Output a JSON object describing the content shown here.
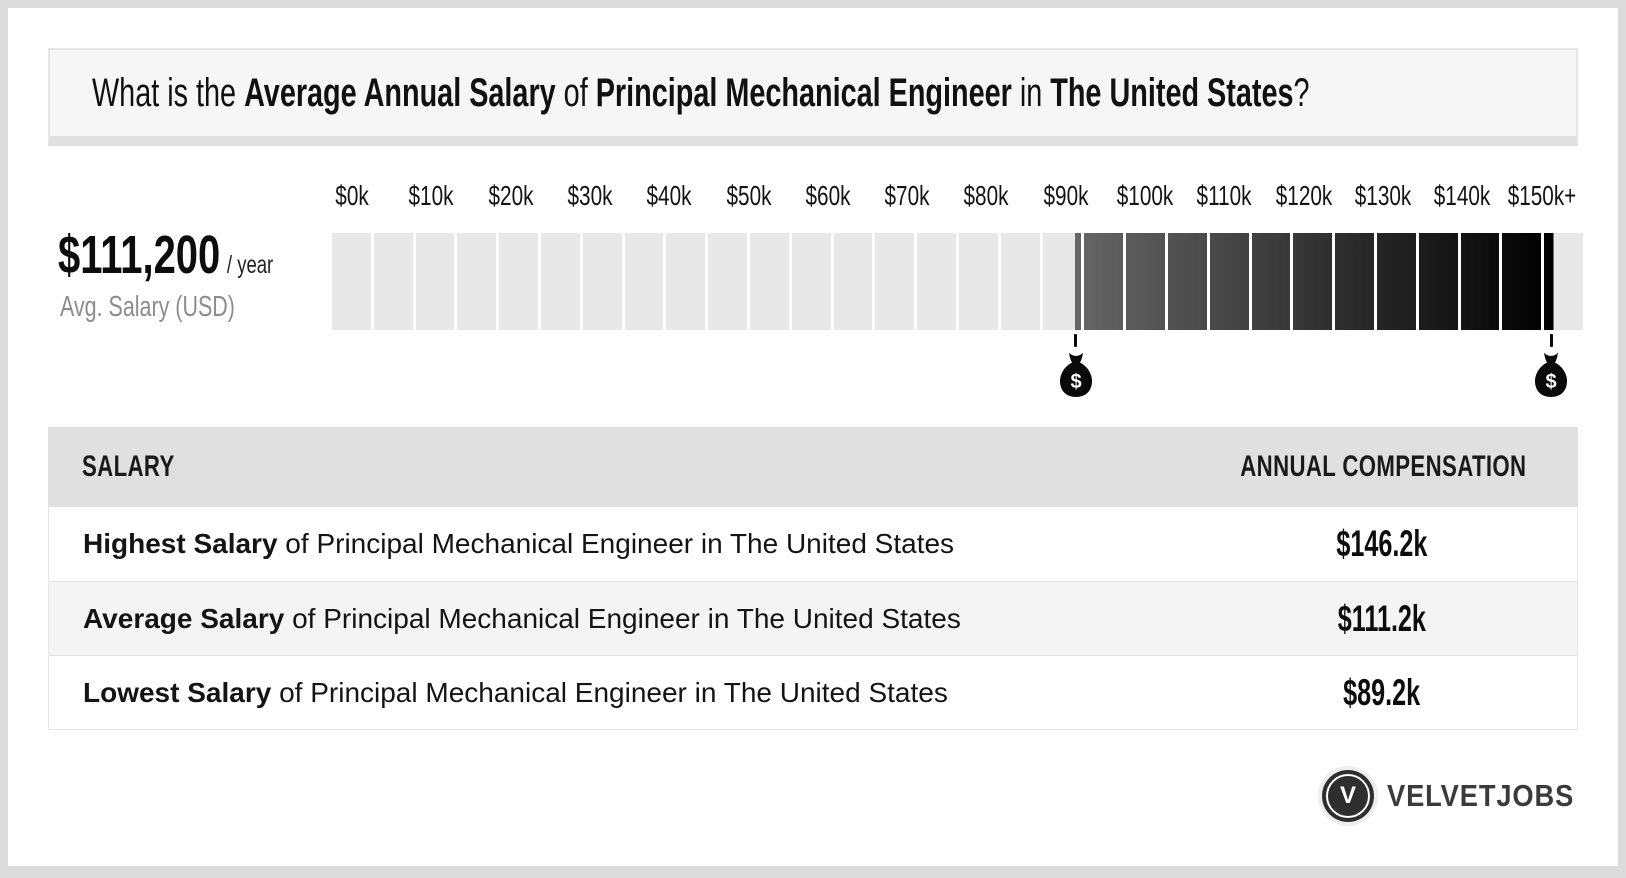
{
  "header": {
    "question_segments": [
      {
        "text": "What is the ",
        "bold": false
      },
      {
        "text": "Average Annual Salary",
        "bold": true
      },
      {
        "text": " of ",
        "bold": false
      },
      {
        "text": "Principal Mechanical Engineer",
        "bold": true
      },
      {
        "text": " in ",
        "bold": false
      },
      {
        "text": "The United States",
        "bold": true
      },
      {
        "text": "?",
        "bold": false
      }
    ]
  },
  "salary_summary": {
    "amount": "$111,200",
    "unit": "/ year",
    "label": "Avg. Salary (USD)"
  },
  "chart_data": {
    "type": "bar",
    "subtype": "salary-range-scale",
    "axis": {
      "min_k": 0,
      "max_k": 150,
      "segment_step_k": 5,
      "tick_step_k": 10,
      "tick_labels": [
        "$0k",
        "$10k",
        "$20k",
        "$30k",
        "$40k",
        "$50k",
        "$60k",
        "$70k",
        "$80k",
        "$90k",
        "$100k",
        "$110k",
        "$120k",
        "$130k",
        "$140k",
        "$150k+"
      ]
    },
    "highlight_range_k": {
      "low": 89.2,
      "high": 146.2
    },
    "markers": [
      {
        "name": "lowest-salary",
        "value_k": 89.2,
        "icon": "money-bag"
      },
      {
        "name": "highest-salary",
        "value_k": 146.2,
        "icon": "money-bag"
      }
    ],
    "colors": {
      "track": "#e8e8e8",
      "range_start": "#666666",
      "range_end": "#000000",
      "gap": "#ffffff"
    }
  },
  "table": {
    "headers": [
      "SALARY",
      "ANNUAL COMPENSATION"
    ],
    "rows": [
      {
        "label_bold": "Highest Salary",
        "label_rest": " of Principal Mechanical Engineer in The United States",
        "value": "$146.2k"
      },
      {
        "label_bold": "Average Salary",
        "label_rest": " of Principal Mechanical Engineer in The United States",
        "value": "$111.2k"
      },
      {
        "label_bold": "Lowest Salary",
        "label_rest": " of Principal Mechanical Engineer in The United States",
        "value": "$89.2k"
      }
    ]
  },
  "footer": {
    "brand": "VELVETJOBS",
    "logo_letter": "V"
  }
}
